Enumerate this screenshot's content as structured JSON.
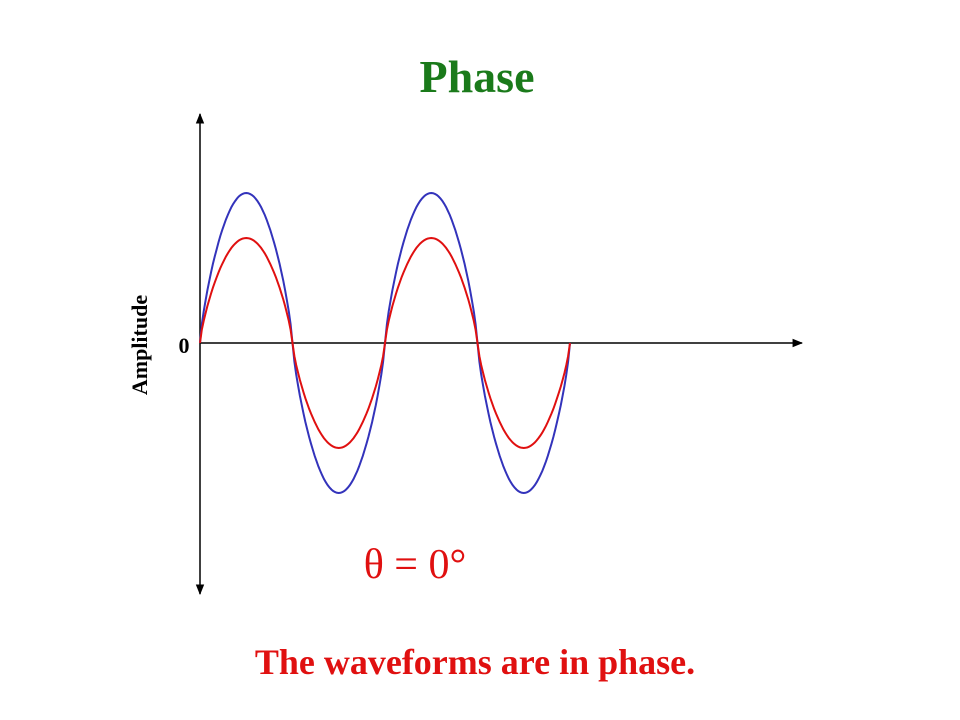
{
  "title": "Phase",
  "axis_label": "Amplitude",
  "origin_label": "0",
  "phase_label": "θ = 0°",
  "caption": "The waveforms are in phase."
}
